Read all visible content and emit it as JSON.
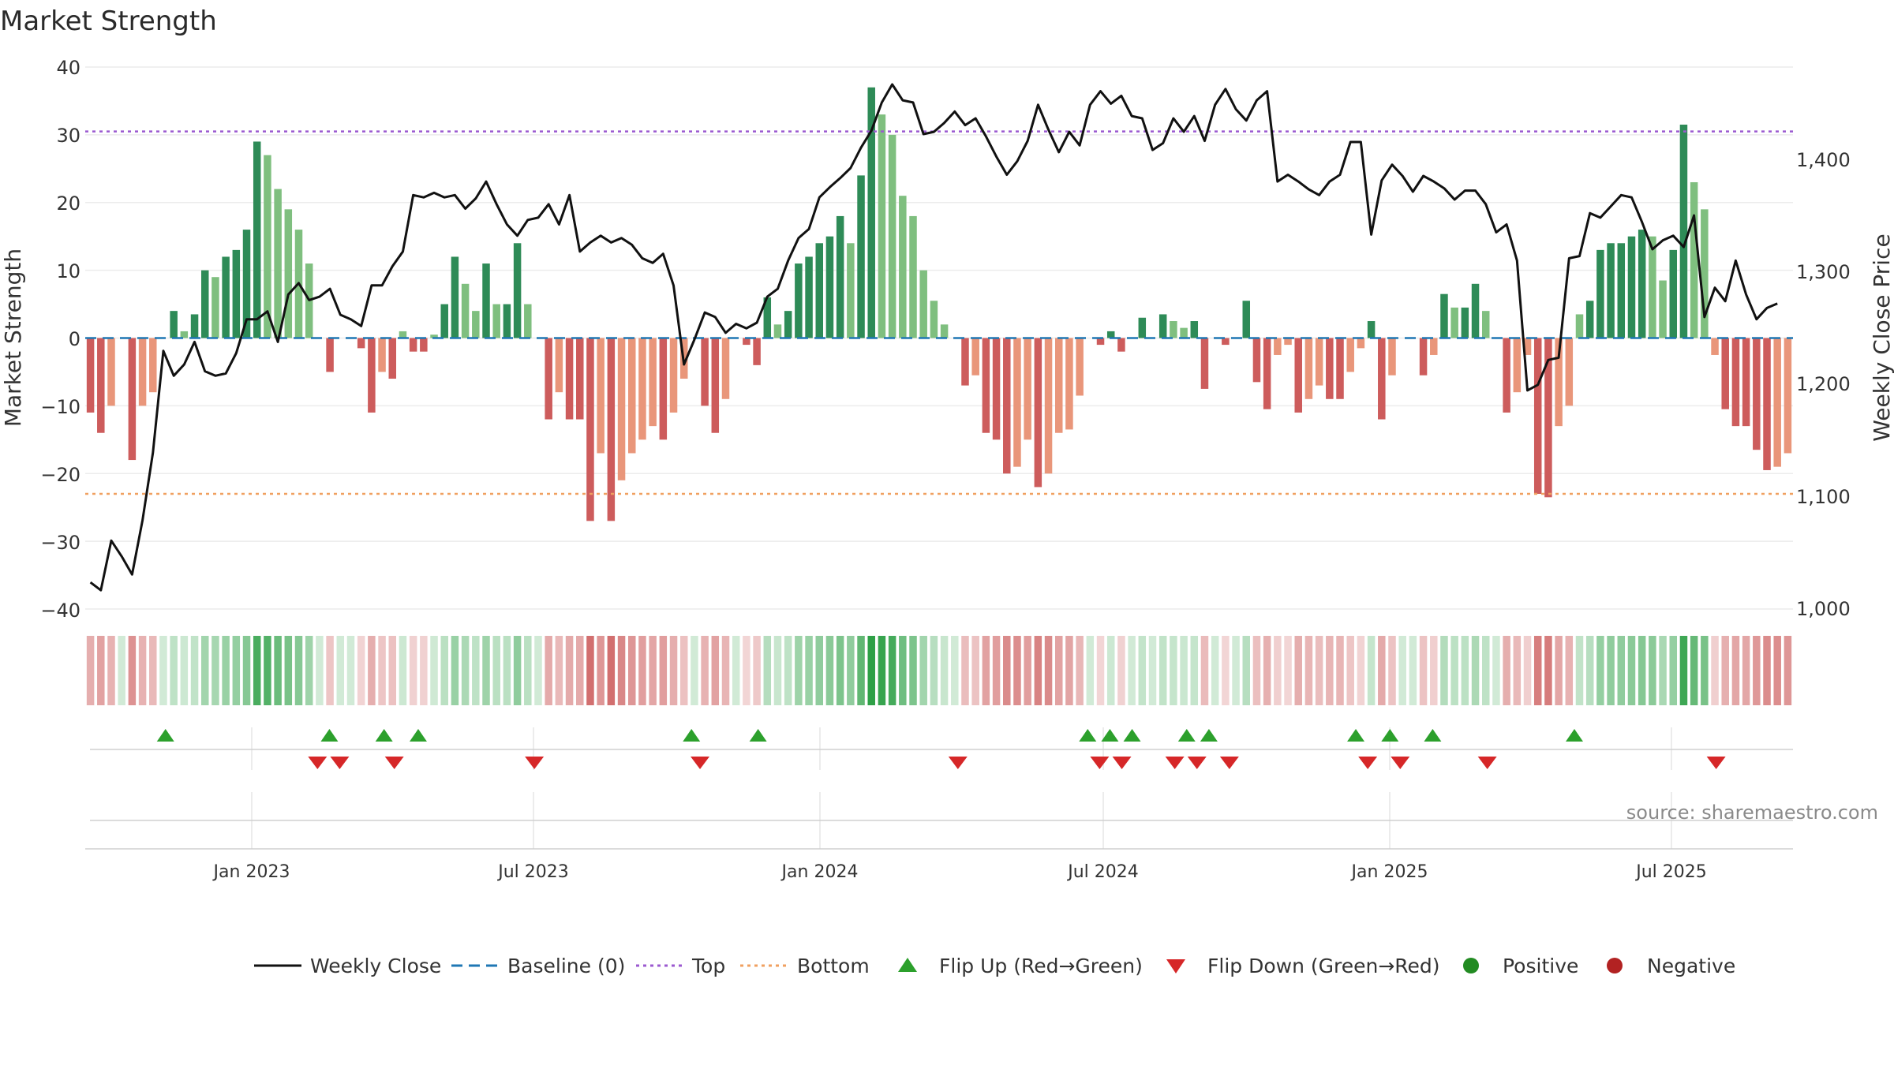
{
  "chart_data": {
    "type": "bar",
    "title": "Market Strength",
    "ylabel": "Market Strength",
    "y2label": "Weekly Close Price",
    "ylim": [
      -40,
      40
    ],
    "y2lim": [
      1000,
      1480
    ],
    "yticks": [
      "40",
      "30",
      "20",
      "10",
      "0",
      "−10",
      "−20",
      "−30",
      "−40"
    ],
    "y2ticks": [
      "1,400",
      "1,300",
      "1,200",
      "1,100",
      "1,000"
    ],
    "xticks": [
      "Jan 2023",
      "Jul 2023",
      "Jan 2024",
      "Jul 2024",
      "Jan 2025",
      "Jul 2025"
    ],
    "reference_lines": {
      "baseline": 0,
      "top": 30.5,
      "bottom": -23
    },
    "strength": [
      -11,
      -14,
      -10,
      0,
      -18,
      -10,
      -8,
      0,
      4,
      1,
      3.5,
      10,
      9,
      12,
      13,
      16,
      29,
      27,
      22,
      19,
      16,
      11,
      0,
      -5,
      0,
      0,
      -1.5,
      -11,
      -5,
      -6,
      1,
      -2,
      -2,
      0.5,
      5,
      12,
      8,
      4,
      11,
      5,
      5,
      14,
      5,
      0,
      -12,
      -8,
      -12,
      -12,
      -27,
      -17,
      -27,
      -21,
      -17,
      -15,
      -13,
      -15,
      -11,
      -6,
      0,
      -10,
      -14,
      -9,
      0,
      -1,
      -4,
      6,
      2,
      4,
      11,
      12,
      14,
      15,
      18,
      14,
      24,
      37,
      33,
      30,
      21,
      18,
      10,
      5.5,
      2,
      0,
      -7,
      -5.5,
      -14,
      -15,
      -20,
      -19,
      -15,
      -22,
      -20,
      -14,
      -13.5,
      -8.5,
      0,
      -1,
      1,
      -2,
      0,
      3,
      0,
      3.5,
      2.5,
      1.5,
      2.5,
      -7.5,
      0,
      -1,
      0,
      5.5,
      -6.5,
      -10.5,
      -2.5,
      -1,
      -11,
      -9,
      -7,
      -9,
      -9,
      -5,
      -1.5,
      2.5,
      -12,
      -5.5,
      0,
      0,
      -5.5,
      -2.5,
      6.5,
      4.5,
      4.5,
      8,
      4,
      0,
      -11,
      -8,
      -2.5,
      -23,
      -23.5,
      -13,
      -10,
      3.5,
      5.5,
      13,
      14,
      14,
      15,
      16,
      15,
      8.5,
      13,
      31.5,
      23,
      19,
      -2.5,
      -10.5,
      -13,
      -13,
      -16.5,
      -19.5,
      -19,
      -17
    ],
    "close": [
      1025,
      1018,
      1062,
      1048,
      1032,
      1080,
      1140,
      1230,
      1208,
      1218,
      1238,
      1212,
      1208,
      1210,
      1228,
      1258,
      1258,
      1265,
      1238,
      1280,
      1290,
      1275,
      1278,
      1285,
      1262,
      1258,
      1252,
      1288,
      1288,
      1305,
      1318,
      1368,
      1366,
      1370,
      1366,
      1368,
      1356,
      1365,
      1380,
      1360,
      1342,
      1332,
      1346,
      1348,
      1360,
      1342,
      1368,
      1318,
      1326,
      1332,
      1326,
      1330,
      1324,
      1312,
      1308,
      1316,
      1288,
      1218,
      1240,
      1264,
      1260,
      1246,
      1254,
      1250,
      1255,
      1278,
      1285,
      1310,
      1330,
      1338,
      1366,
      1375,
      1383,
      1392,
      1410,
      1425,
      1450,
      1466,
      1452,
      1450,
      1422,
      1424,
      1432,
      1442,
      1430,
      1436,
      1420,
      1402,
      1386,
      1398,
      1416,
      1448,
      1426,
      1406,
      1424,
      1412,
      1448,
      1460,
      1449,
      1456,
      1438,
      1436,
      1408,
      1414,
      1436,
      1424,
      1438,
      1416,
      1448,
      1462,
      1444,
      1434,
      1452,
      1460,
      1380,
      1386,
      1380,
      1373,
      1368,
      1380,
      1386,
      1415,
      1415,
      1333,
      1381,
      1395,
      1385,
      1371,
      1385,
      1380,
      1374,
      1364,
      1372,
      1372,
      1360,
      1335,
      1342,
      1310,
      1195,
      1200,
      1222,
      1224,
      1312,
      1314,
      1352,
      1348,
      1358,
      1368,
      1366,
      1344,
      1320,
      1328,
      1332,
      1322,
      1350,
      1260,
      1286,
      1274,
      1310,
      1280,
      1258,
      1268,
      1272
    ],
    "flip_up_x": [
      0.047,
      0.143,
      0.175,
      0.195,
      0.355,
      0.394,
      0.587,
      0.6,
      0.613,
      0.645,
      0.658,
      0.744,
      0.764,
      0.789,
      0.872
    ],
    "flip_down_x": [
      0.136,
      0.149,
      0.181,
      0.263,
      0.36,
      0.511,
      0.594,
      0.607,
      0.638,
      0.651,
      0.67,
      0.751,
      0.77,
      0.821,
      0.955
    ],
    "colors": {
      "green_strong": "#2e8b57",
      "green_light": "#7fbf7f",
      "red_strong": "#cd5c5c",
      "red_light": "#e9967a",
      "line": "#111111",
      "baseline": "#1f77b4",
      "top": "#9b59d0",
      "bottom": "#f0a060",
      "flip_up": "#2ca02c",
      "flip_down": "#d62728",
      "positive": "#228b22",
      "negative": "#b22222"
    }
  },
  "legend": [
    {
      "label": "Weekly Close",
      "icon": "solid-line"
    },
    {
      "label": "Baseline (0)",
      "icon": "dashed-line"
    },
    {
      "label": "Top",
      "icon": "dotted-line"
    },
    {
      "label": "Bottom",
      "icon": "dotted-line"
    },
    {
      "label": "Flip Up (Red→Green)",
      "icon": "triangle-up"
    },
    {
      "label": "Flip Down (Green→Red)",
      "icon": "triangle-down"
    },
    {
      "label": "Positive",
      "icon": "circle"
    },
    {
      "label": "Negative",
      "icon": "circle"
    }
  ],
  "source": "source: sharemaestro.com"
}
